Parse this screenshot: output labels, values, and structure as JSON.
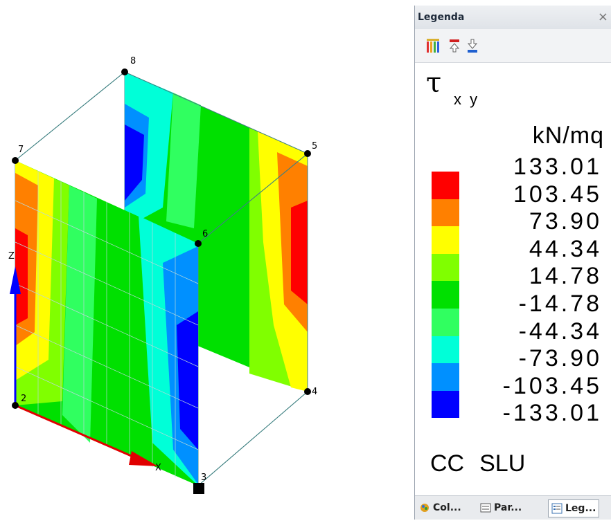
{
  "viewport": {
    "nodes": [
      "8",
      "7",
      "5",
      "6",
      "2",
      "4",
      "3"
    ],
    "axes": {
      "z": "Z",
      "x": "X"
    }
  },
  "legend_panel": {
    "title": "Legenda",
    "close_glyph": "×",
    "result_symbol": "τ",
    "result_subscript": "x y",
    "unit": "kN/mq",
    "scale_values": [
      "133.01",
      "103.45",
      "73.90",
      "44.34",
      "14.78",
      "-14.78",
      "-44.34",
      "-73.90",
      "-103.45",
      "-133.01"
    ],
    "colors": [
      "#ff0000",
      "#ff8000",
      "#ffff00",
      "#80ff00",
      "#00e000",
      "#30ff60",
      "#00ffd8",
      "#0090ff",
      "#0000ff"
    ],
    "load_case": [
      "CC",
      "SLU"
    ],
    "toolbar_icons": [
      "color-bars-icon",
      "move-up-icon",
      "move-down-icon"
    ],
    "tabs": [
      {
        "label": "Col...",
        "icon": "colors-icon"
      },
      {
        "label": "Par...",
        "icon": "parameters-icon"
      },
      {
        "label": "Leg...",
        "icon": "legend-icon"
      }
    ]
  }
}
